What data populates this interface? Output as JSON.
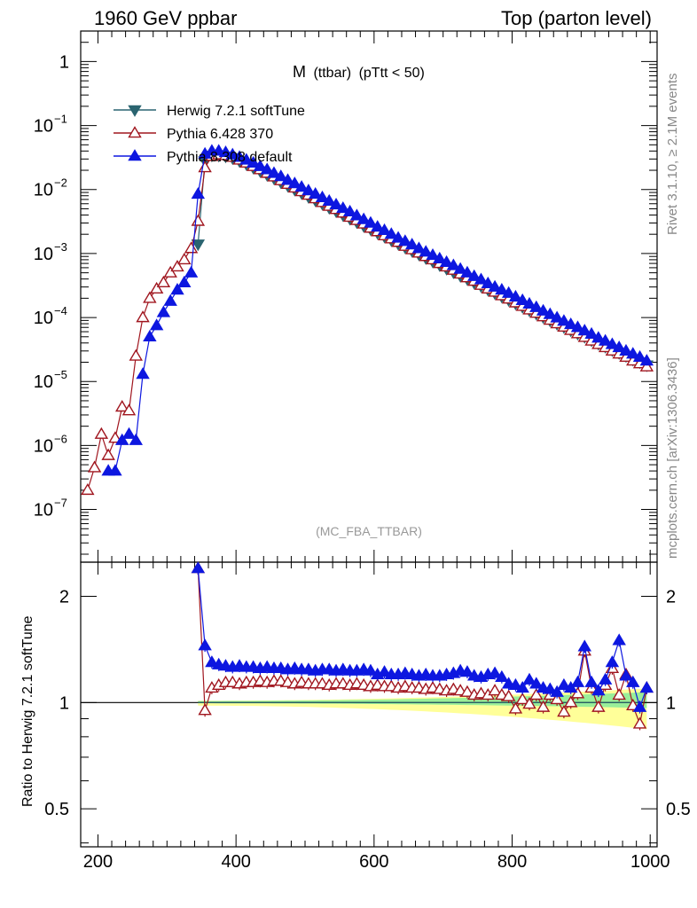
{
  "header": {
    "left_title": "1960 GeV ppbar",
    "right_title": "Top (parton level)"
  },
  "side": {
    "rivet": "Rivet 3.1.10, ≥ 2.1M events",
    "mcplots": "mcplots.cern.ch [arXiv:1306.3436]"
  },
  "observable": {
    "main": "M",
    "sub": "(ttbar)",
    "cut": "(pTtt < 50)"
  },
  "analysis_tag": "(MC_FBA_TTBAR)",
  "ratio_ylabel": "Ratio to Herwig 7.2.1 softTune",
  "chart_data": [
    {
      "type": "scatter",
      "scale": "log-y",
      "xlim": [
        175,
        1010
      ],
      "ylim": [
        1.5e-08,
        3
      ],
      "x_ticks": [
        {
          "label": "200",
          "value": 200
        },
        {
          "label": "400",
          "value": 400
        },
        {
          "label": "600",
          "value": 600
        },
        {
          "label": "800",
          "value": 800
        },
        {
          "label": "1000",
          "value": 1000
        }
      ],
      "y_ticks": [
        {
          "label": "1",
          "value": 1,
          "sup": ""
        },
        {
          "label": "10",
          "value": 0.1,
          "sup": "−1"
        },
        {
          "label": "10",
          "value": 0.01,
          "sup": "−2"
        },
        {
          "label": "10",
          "value": 0.001,
          "sup": "−3"
        },
        {
          "label": "10",
          "value": 0.0001,
          "sup": "−4"
        },
        {
          "label": "10",
          "value": 1e-05,
          "sup": "−5"
        },
        {
          "label": "10",
          "value": 1e-06,
          "sup": "−6"
        },
        {
          "label": "10",
          "value": 1e-07,
          "sup": "−7"
        }
      ],
      "legend_position": "top-left",
      "series": [
        {
          "name": "Herwig 7.2.1 softTune",
          "color": "#2a6470",
          "marker": "triangle-down-filled",
          "x": [
            345,
            355,
            365,
            375,
            385,
            395,
            405,
            415,
            425,
            435,
            445,
            455,
            465,
            475,
            485,
            495,
            505,
            515,
            525,
            535,
            545,
            555,
            565,
            575,
            585,
            595,
            605,
            615,
            625,
            635,
            645,
            655,
            665,
            675,
            685,
            695,
            705,
            715,
            725,
            735,
            745,
            755,
            765,
            775,
            785,
            795,
            805,
            815,
            825,
            835,
            845,
            855,
            865,
            875,
            885,
            895,
            905,
            915,
            925,
            935,
            945,
            955,
            965,
            975,
            985,
            995
          ],
          "y": [
            0.0014,
            0.028,
            0.034,
            0.034,
            0.033,
            0.031,
            0.028,
            0.025,
            0.022,
            0.0195,
            0.017,
            0.015,
            0.013,
            0.0115,
            0.01,
            0.0088,
            0.0077,
            0.0068,
            0.006,
            0.0052,
            0.0046,
            0.004,
            0.0035,
            0.0031,
            0.0027,
            0.0024,
            0.0021,
            0.00185,
            0.00162,
            0.00142,
            0.00125,
            0.0011,
            0.00097,
            0.00085,
            0.00075,
            0.00066,
            0.00058,
            0.00051,
            0.00045,
            0.0004,
            0.00035,
            0.00031,
            0.000273,
            0.000241,
            0.000213,
            0.000188,
            0.000166,
            0.000147,
            0.00013,
            0.000115,
            0.000102,
            9e-05,
            8e-05,
            7.1e-05,
            6.3e-05,
            5.6e-05,
            5e-05,
            4.4e-05,
            3.9e-05,
            3.5e-05,
            3.1e-05,
            2.8e-05,
            2.5e-05,
            2.2e-05,
            2e-05,
            1.8e-05
          ]
        },
        {
          "name": "Pythia 6.428 370",
          "color": "#a0161f",
          "marker": "triangle-up-open",
          "x": [
            185,
            195,
            205,
            215,
            225,
            235,
            245,
            255,
            265,
            275,
            285,
            295,
            305,
            315,
            325,
            335,
            345,
            355,
            365,
            375,
            385,
            395,
            405,
            415,
            425,
            435,
            445,
            455,
            465,
            475,
            485,
            495,
            505,
            515,
            525,
            535,
            545,
            555,
            565,
            575,
            585,
            595,
            605,
            615,
            625,
            635,
            645,
            655,
            665,
            675,
            685,
            695,
            705,
            715,
            725,
            735,
            745,
            755,
            765,
            775,
            785,
            795,
            805,
            815,
            825,
            835,
            845,
            855,
            865,
            875,
            885,
            895,
            905,
            915,
            925,
            935,
            945,
            955,
            965,
            975,
            985,
            995
          ],
          "y": [
            2e-07,
            4.5e-07,
            1.5e-06,
            7e-07,
            1.3e-06,
            4e-06,
            3.5e-06,
            2.5e-05,
            0.0001,
            0.0002,
            0.00028,
            0.00035,
            0.0005,
            0.00062,
            0.0008,
            0.0012,
            0.0032,
            0.022,
            0.033,
            0.035,
            0.034,
            0.032,
            0.029,
            0.026,
            0.023,
            0.0205,
            0.018,
            0.0158,
            0.0138,
            0.0121,
            0.0106,
            0.0093,
            0.0082,
            0.0072,
            0.0063,
            0.0055,
            0.0049,
            0.0043,
            0.0037,
            0.0033,
            0.0029,
            0.0025,
            0.0022,
            0.0019,
            0.0017,
            0.0015,
            0.0013,
            0.00115,
            0.00102,
            0.0009,
            0.0008,
            0.0007,
            0.00062,
            0.00055,
            0.00048,
            0.00042,
            0.00037,
            0.00032,
            0.00028,
            0.00025,
            0.00022,
            0.000195,
            0.00017,
            0.00015,
            0.000132,
            0.000117,
            0.000103,
            9.1e-05,
            8e-05,
            7.1e-05,
            6.3e-05,
            5.6e-05,
            4.9e-05,
            4.3e-05,
            3.8e-05,
            3.4e-05,
            3e-05,
            2.7e-05,
            2.4e-05,
            2.1e-05,
            1.9e-05,
            1.7e-05
          ]
        },
        {
          "name": "Pythia 8.308 default",
          "color": "#0d17e0",
          "marker": "triangle-up-filled",
          "x": [
            215,
            225,
            235,
            245,
            255,
            265,
            275,
            285,
            295,
            305,
            315,
            325,
            335,
            345,
            355,
            365,
            375,
            385,
            395,
            405,
            415,
            425,
            435,
            445,
            455,
            465,
            475,
            485,
            495,
            505,
            515,
            525,
            535,
            545,
            555,
            565,
            575,
            585,
            595,
            605,
            615,
            625,
            635,
            645,
            655,
            665,
            675,
            685,
            695,
            705,
            715,
            725,
            735,
            745,
            755,
            765,
            775,
            785,
            795,
            805,
            815,
            825,
            835,
            845,
            855,
            865,
            875,
            885,
            895,
            905,
            915,
            925,
            935,
            945,
            955,
            965,
            975,
            985,
            995
          ],
          "y": [
            4e-07,
            4e-07,
            1.2e-06,
            1.5e-06,
            1.2e-06,
            1.3e-05,
            5e-05,
            7.5e-05,
            0.00012,
            0.00018,
            0.00027,
            0.00035,
            0.0005,
            0.0085,
            0.036,
            0.04,
            0.04,
            0.038,
            0.035,
            0.032,
            0.029,
            0.026,
            0.023,
            0.0205,
            0.018,
            0.016,
            0.014,
            0.0124,
            0.0109,
            0.0096,
            0.0085,
            0.0075,
            0.0066,
            0.0058,
            0.0051,
            0.0045,
            0.0039,
            0.0034,
            0.003,
            0.0026,
            0.0023,
            0.002,
            0.00175,
            0.00155,
            0.00137,
            0.0012,
            0.00106,
            0.00094,
            0.00083,
            0.00073,
            0.00065,
            0.00057,
            0.0005,
            0.00044,
            0.00039,
            0.00034,
            0.0003,
            0.00027,
            0.00024,
            0.00021,
            0.000185,
            0.000163,
            0.000144,
            0.000127,
            0.000112,
            9.9e-05,
            8.8e-05,
            7.8e-05,
            7e-05,
            6.2e-05,
            5.5e-05,
            4.8e-05,
            4.3e-05,
            3.8e-05,
            3.4e-05,
            3e-05,
            2.7e-05,
            2.4e-05,
            2.1e-05
          ]
        }
      ]
    },
    {
      "type": "scatter",
      "scale": "log-y",
      "xlim": [
        175,
        1010
      ],
      "ylim": [
        0.39,
        2.5
      ],
      "reference_line": 1,
      "x_ticks": [
        {
          "label": "200",
          "value": 200
        },
        {
          "label": "400",
          "value": 400
        },
        {
          "label": "600",
          "value": 600
        },
        {
          "label": "800",
          "value": 800
        },
        {
          "label": "1000",
          "value": 1000
        }
      ],
      "y_ticks": [
        {
          "label": "2",
          "value": 2
        },
        {
          "label": "1",
          "value": 1
        },
        {
          "label": "0.5",
          "value": 0.5
        }
      ],
      "series": [
        {
          "name": "Pythia 6.428 370",
          "color": "#a0161f",
          "marker": "triangle-up-open",
          "x": [
            345,
            355,
            365,
            375,
            385,
            395,
            405,
            415,
            425,
            435,
            445,
            455,
            465,
            475,
            485,
            495,
            505,
            515,
            525,
            535,
            545,
            555,
            565,
            575,
            585,
            595,
            605,
            615,
            625,
            635,
            645,
            655,
            665,
            675,
            685,
            695,
            705,
            715,
            725,
            735,
            745,
            755,
            765,
            775,
            785,
            795,
            805,
            815,
            825,
            835,
            845,
            855,
            865,
            875,
            885,
            895,
            905,
            915,
            925,
            935,
            945,
            955,
            965,
            975,
            985,
            995
          ],
          "y": [
            2.4,
            0.95,
            1.1,
            1.12,
            1.14,
            1.14,
            1.13,
            1.14,
            1.14,
            1.15,
            1.14,
            1.15,
            1.15,
            1.14,
            1.13,
            1.14,
            1.13,
            1.13,
            1.13,
            1.12,
            1.13,
            1.13,
            1.12,
            1.13,
            1.12,
            1.11,
            1.12,
            1.11,
            1.11,
            1.1,
            1.11,
            1.1,
            1.1,
            1.09,
            1.1,
            1.09,
            1.08,
            1.09,
            1.08,
            1.07,
            1.05,
            1.06,
            1.05,
            1.08,
            1.05,
            1.04,
            0.96,
            1.02,
            0.99,
            1.05,
            0.97,
            1.05,
            1.02,
            0.94,
            1.0,
            1.06,
            1.4,
            1.1,
            0.97,
            1.12,
            1.25,
            1.05,
            1.2,
            0.98,
            0.87,
            1.1
          ]
        },
        {
          "name": "Pythia 8.308 default",
          "color": "#0d17e0",
          "marker": "triangle-up-filled",
          "x": [
            345,
            355,
            365,
            375,
            385,
            395,
            405,
            415,
            425,
            435,
            445,
            455,
            465,
            475,
            485,
            495,
            505,
            515,
            525,
            535,
            545,
            555,
            565,
            575,
            585,
            595,
            605,
            615,
            625,
            635,
            645,
            655,
            665,
            675,
            685,
            695,
            705,
            715,
            725,
            735,
            745,
            755,
            765,
            775,
            785,
            795,
            805,
            815,
            825,
            835,
            845,
            855,
            865,
            875,
            885,
            895,
            905,
            915,
            925,
            935,
            945,
            955,
            965,
            975,
            985,
            995
          ],
          "y": [
            2.4,
            1.45,
            1.3,
            1.28,
            1.27,
            1.26,
            1.27,
            1.26,
            1.26,
            1.25,
            1.26,
            1.25,
            1.25,
            1.24,
            1.25,
            1.24,
            1.24,
            1.23,
            1.24,
            1.24,
            1.23,
            1.24,
            1.23,
            1.23,
            1.24,
            1.23,
            1.2,
            1.22,
            1.2,
            1.2,
            1.21,
            1.2,
            1.19,
            1.2,
            1.19,
            1.19,
            1.2,
            1.21,
            1.23,
            1.22,
            1.19,
            1.18,
            1.2,
            1.21,
            1.18,
            1.13,
            1.12,
            1.1,
            1.16,
            1.13,
            1.1,
            1.09,
            1.07,
            1.12,
            1.1,
            1.14,
            1.44,
            1.14,
            1.08,
            1.16,
            1.3,
            1.5,
            1.19,
            1.14,
            0.97,
            1.1
          ]
        }
      ]
    }
  ]
}
